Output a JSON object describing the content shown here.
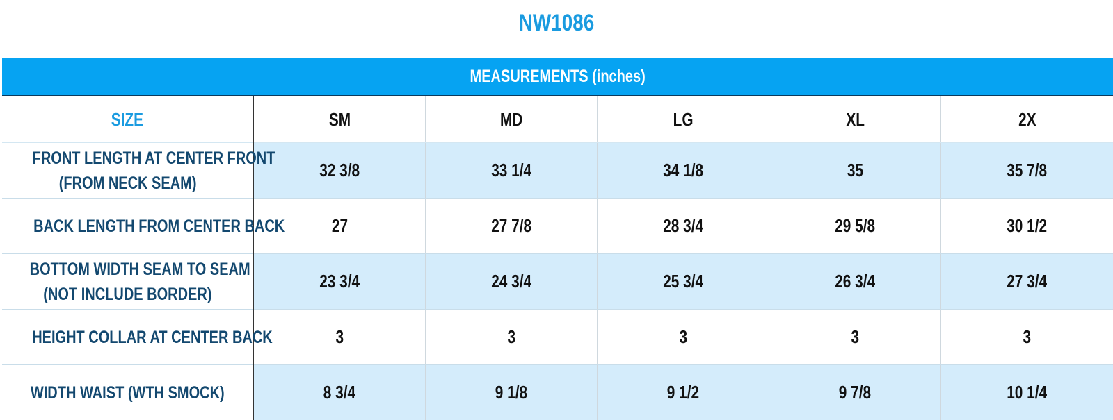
{
  "title": "NW1086",
  "banner": "MEASUREMENTS (inches)",
  "size_label": "SIZE",
  "sizes": [
    "SM",
    "MD",
    "LG",
    "XL",
    "2X"
  ],
  "rows": [
    {
      "label_line1": "FRONT LENGTH AT CENTER FRONT",
      "label_line2": "(FROM  NECK SEAM)",
      "values": [
        "32 3/8",
        "33 1/4",
        "34 1/8",
        "35",
        "35 7/8"
      ]
    },
    {
      "label_line1": "BACK LENGTH FROM CENTER BACK",
      "label_line2": "",
      "values": [
        "27",
        "27 7/8",
        "28 3/4",
        "29 5/8",
        "30 1/2"
      ]
    },
    {
      "label_line1": "BOTTOM  WIDTH SEAM TO SEAM",
      "label_line2": "(NOT INCLUDE BORDER)",
      "values": [
        "23 3/4",
        "24 3/4",
        "25 3/4",
        "26 3/4",
        "27 3/4"
      ]
    },
    {
      "label_line1": "HEIGHT COLLAR AT CENTER BACK",
      "label_line2": "",
      "values": [
        "3",
        "3",
        "3",
        "3",
        "3"
      ]
    },
    {
      "label_line1": "WIDTH WAIST (WTH SMOCK)",
      "label_line2": "",
      "values": [
        "8 3/4",
        "9 1/8",
        "9 1/2",
        "9 7/8",
        "10 1/4"
      ]
    }
  ],
  "colors": {
    "title": "#1a9be0",
    "banner_bg": "#06a3f2",
    "label_text": "#13486f",
    "shaded_row": "#d4ecfb"
  }
}
